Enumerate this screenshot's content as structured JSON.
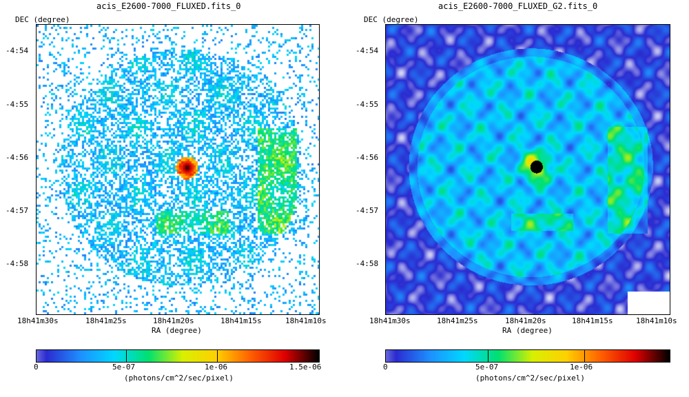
{
  "panels": [
    {
      "title": "acis_E2600-7000_FLUXED.fits_0",
      "dec_label": "DEC (degree)",
      "ra_label": "RA (degree)",
      "yticks": [
        "-4:54",
        "-4:55",
        "-4:56",
        "-4:57",
        "-4:58"
      ],
      "xticks": [
        "18h41m30s",
        "18h41m25s",
        "18h41m20s",
        "18h41m15s",
        "18h41m10s"
      ],
      "colorbar_ticks": [
        "0",
        "5e-07",
        "1e-06",
        "1.5e-06"
      ],
      "colorbar_unit": "(photons/cm^2/sec/pixel)",
      "style": "sparse"
    },
    {
      "title": "acis_E2600-7000_FLUXED_G2.fits_0",
      "dec_label": "DEC (degree)",
      "ra_label": "RA (degree)",
      "yticks": [
        "-4:54",
        "-4:55",
        "-4:56",
        "-4:57",
        "-4:58"
      ],
      "xticks": [
        "18h41m30s",
        "18h41m25s",
        "18h41m20s",
        "18h41m15s",
        "18h41m10s"
      ],
      "colorbar_ticks": [
        "0",
        "5e-07",
        "1e-06"
      ],
      "colorbar_unit": "(photons/cm^2/sec/pixel)",
      "style": "smooth"
    }
  ],
  "colors": {
    "colormap": [
      "#ffffff",
      "#2b2bd0",
      "#1e90ff",
      "#00d8ff",
      "#00e070",
      "#d8f000",
      "#ffd000",
      "#ff6000",
      "#e00000",
      "#000000"
    ]
  }
}
